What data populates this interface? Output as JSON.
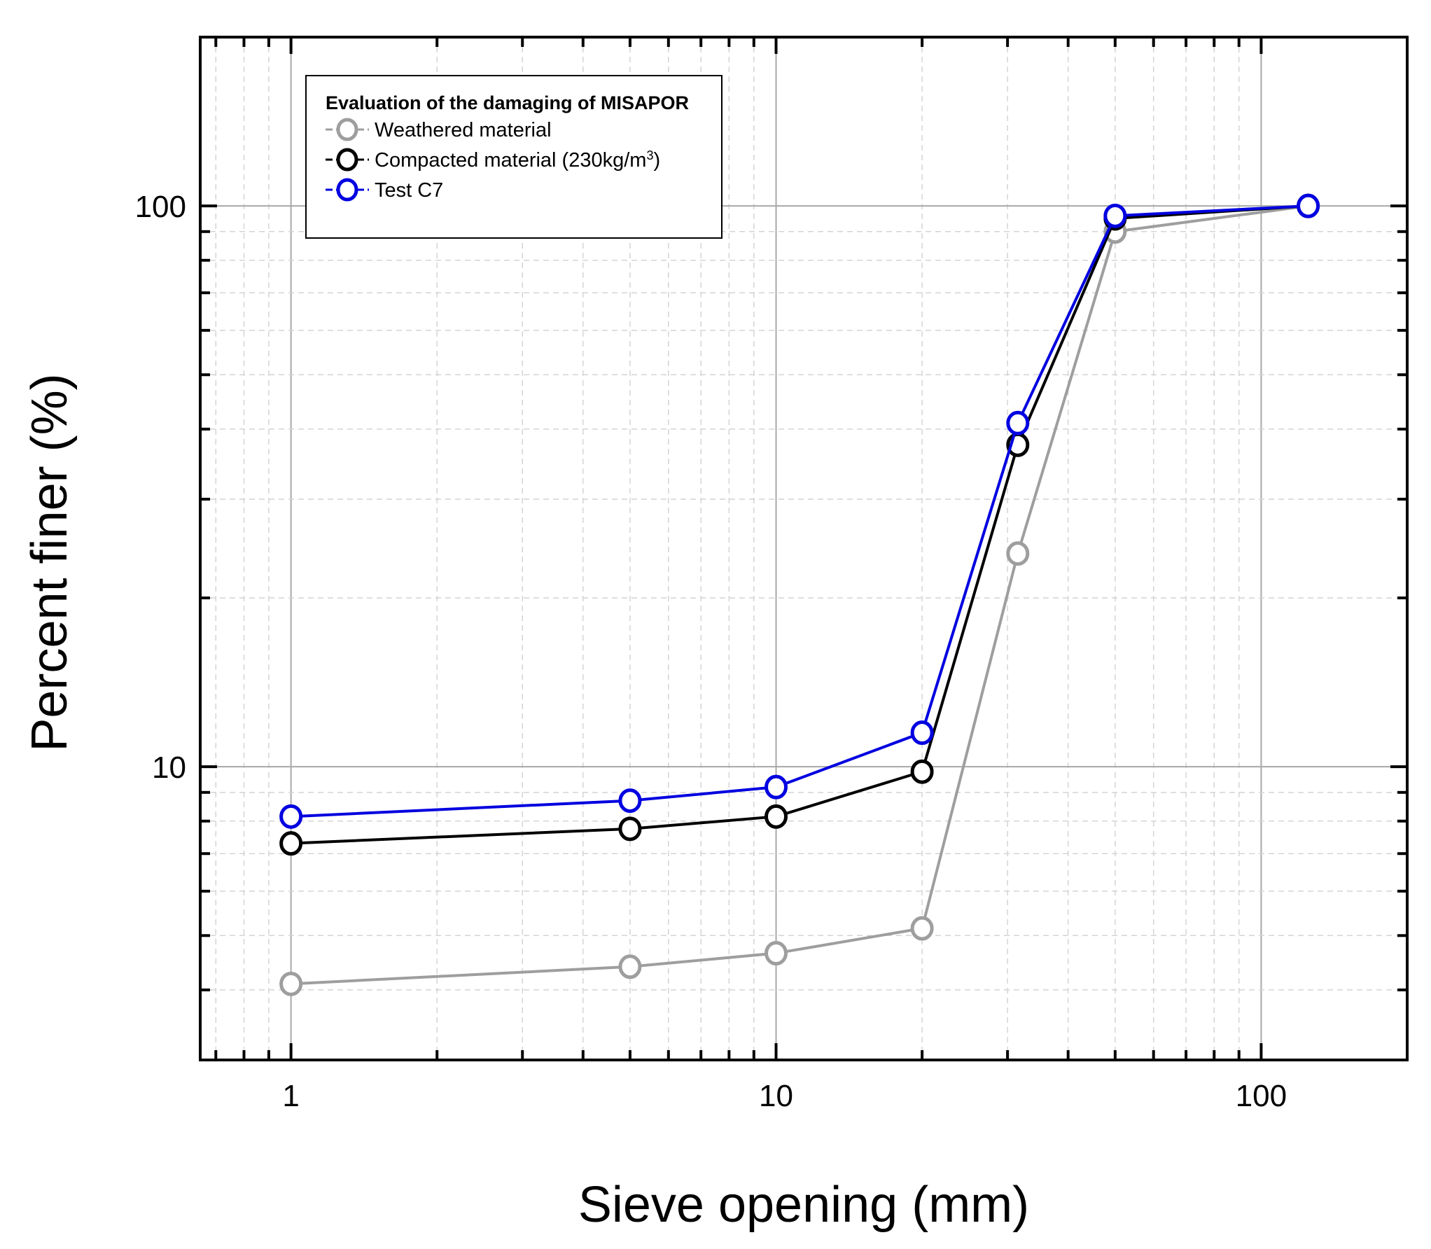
{
  "chart_data": {
    "type": "line",
    "xlabel": "Sieve opening (mm)",
    "ylabel": "Percent finer (%)",
    "xscale": "log",
    "yscale": "log",
    "xlim": [
      0.65,
      200
    ],
    "ylim": [
      3,
      200
    ],
    "x_ticks": [
      1,
      10,
      100
    ],
    "x_tick_labels": [
      "1",
      "10",
      "100"
    ],
    "y_ticks": [
      10,
      100
    ],
    "y_tick_labels": [
      "10",
      "100"
    ],
    "grid": true,
    "legend_position": "top-left",
    "legend_title": "Evaluation of the damaging of MISAPOR",
    "series": [
      {
        "name": "Weathered material",
        "color": "#9e9e9e",
        "x": [
          1,
          5,
          10,
          20,
          31.5,
          50,
          125
        ],
        "y": [
          4.1,
          4.4,
          4.65,
          5.15,
          24,
          90,
          100
        ]
      },
      {
        "name": "Compacted material (230kg/m³)",
        "name_parts": [
          "Compacted material (230kg/m",
          "3",
          ")"
        ],
        "color": "#000000",
        "x": [
          1,
          5,
          10,
          20,
          31.5,
          50,
          125
        ],
        "y": [
          7.3,
          7.75,
          8.15,
          9.8,
          37.5,
          95,
          100
        ]
      },
      {
        "name": "Test C7",
        "color": "#0000e0",
        "x": [
          1,
          5,
          10,
          20,
          31.5,
          50,
          125
        ],
        "y": [
          8.15,
          8.7,
          9.2,
          11.5,
          41,
          96,
          100
        ]
      }
    ]
  }
}
